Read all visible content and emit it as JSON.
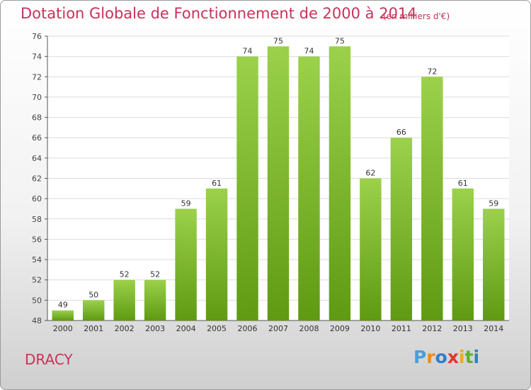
{
  "chart_data": {
    "type": "bar",
    "title": "Dotation Globale de Fonctionnement de 2000 à 2014",
    "unit_note": "(en milliers d'€)",
    "categories": [
      "2000",
      "2001",
      "2002",
      "2003",
      "2004",
      "2005",
      "2006",
      "2007",
      "2008",
      "2009",
      "2010",
      "2011",
      "2012",
      "2013",
      "2014"
    ],
    "values": [
      49,
      50,
      52,
      52,
      59,
      61,
      74,
      75,
      74,
      75,
      62,
      66,
      72,
      61,
      59
    ],
    "ylim": [
      48,
      76
    ],
    "yticks": [
      48,
      50,
      52,
      54,
      56,
      58,
      60,
      62,
      64,
      66,
      68,
      70,
      72,
      74,
      76
    ],
    "grid": "horizontal",
    "colors": {
      "bar_top": "#9bd14b",
      "bar_bottom": "#5f9a12",
      "title": "#c8325a",
      "grid": "#dcdcdc"
    }
  },
  "footer": {
    "place": "DRACY"
  },
  "logo": {
    "letters": [
      "P",
      "r",
      "o",
      "x",
      "i",
      "t",
      "i"
    ],
    "colors": [
      "#4a9fd8",
      "#f08a1c",
      "#2e7fc8",
      "#e3342f",
      "#f0a91c",
      "#5fb02f",
      "#2e7fc8"
    ]
  }
}
